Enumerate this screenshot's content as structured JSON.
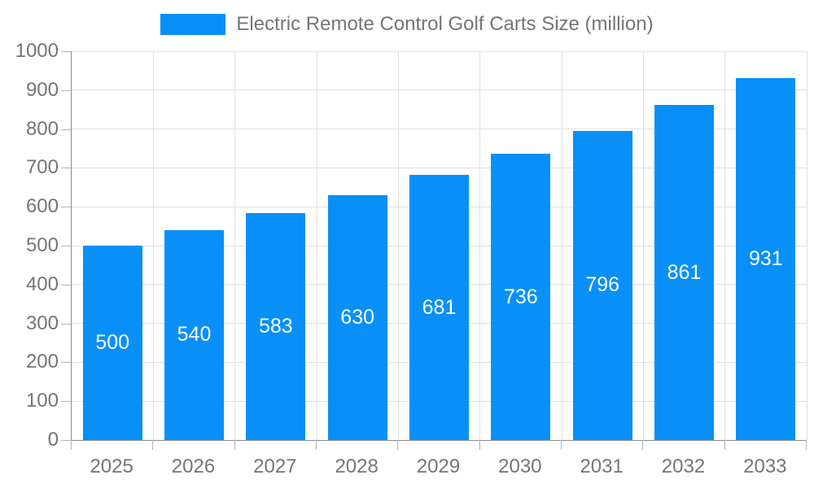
{
  "legend": {
    "label": "Electric Remote Control Golf Carts Size (million)"
  },
  "chart_data": {
    "type": "bar",
    "title": "Electric Remote Control Golf Carts Size (million)",
    "categories": [
      "2025",
      "2026",
      "2027",
      "2028",
      "2029",
      "2030",
      "2031",
      "2032",
      "2033"
    ],
    "values": [
      500,
      540,
      583,
      630,
      681,
      736,
      796,
      861,
      931
    ],
    "xlabel": "",
    "ylabel": "",
    "ylim": [
      0,
      1000
    ],
    "yticks": [
      0,
      100,
      200,
      300,
      400,
      500,
      600,
      700,
      800,
      900,
      1000
    ],
    "grid": true,
    "legend_position": "top",
    "bar_labels": "centered-white",
    "colors": {
      "bar": "#0890F8",
      "bar_label": "#FFFFFF",
      "axis_line": "#8C8C8C",
      "tick_mark": "#B3B3B3",
      "gridline": "#E0E0E0",
      "axis_label": "#757575",
      "legend_text": "#757575",
      "background": "#FFFFFF"
    }
  }
}
